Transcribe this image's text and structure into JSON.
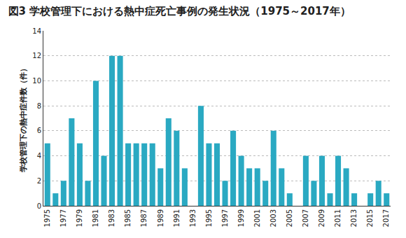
{
  "chart_data": {
    "type": "bar",
    "title": "図3 学校管理下における熱中症死亡事例の発生状況（1975～2017年）",
    "y_label": "学校管理下の熱中症件数（件）",
    "x": [
      1975,
      1976,
      1977,
      1978,
      1979,
      1980,
      1981,
      1982,
      1983,
      1984,
      1985,
      1986,
      1987,
      1988,
      1989,
      1990,
      1991,
      1992,
      1993,
      1994,
      1995,
      1996,
      1997,
      1998,
      1999,
      2000,
      2001,
      2002,
      2003,
      2004,
      2005,
      2006,
      2007,
      2008,
      2009,
      2010,
      2011,
      2012,
      2013,
      2014,
      2015,
      2016,
      2017
    ],
    "values": [
      5,
      1,
      2,
      7,
      5,
      2,
      10,
      4,
      12,
      12,
      5,
      5,
      5,
      5,
      3,
      7,
      6,
      3,
      0,
      8,
      5,
      5,
      2,
      6,
      4,
      3,
      3,
      2,
      6,
      3,
      1,
      0,
      4,
      2,
      4,
      1,
      4,
      3,
      1,
      0,
      1,
      2,
      1
    ],
    "color": "#2aa9c2",
    "xlim": [
      1974.5,
      2017.5
    ],
    "xticks": [
      1975,
      1977,
      1979,
      1981,
      1983,
      1985,
      1987,
      1989,
      1991,
      1993,
      1995,
      1997,
      1999,
      2001,
      2003,
      2005,
      2007,
      2009,
      2011,
      2013,
      2015,
      2017
    ],
    "ylim": [
      0,
      14
    ],
    "yticks": [
      0,
      2,
      4,
      6,
      8,
      10,
      12,
      14
    ],
    "grid": true
  }
}
